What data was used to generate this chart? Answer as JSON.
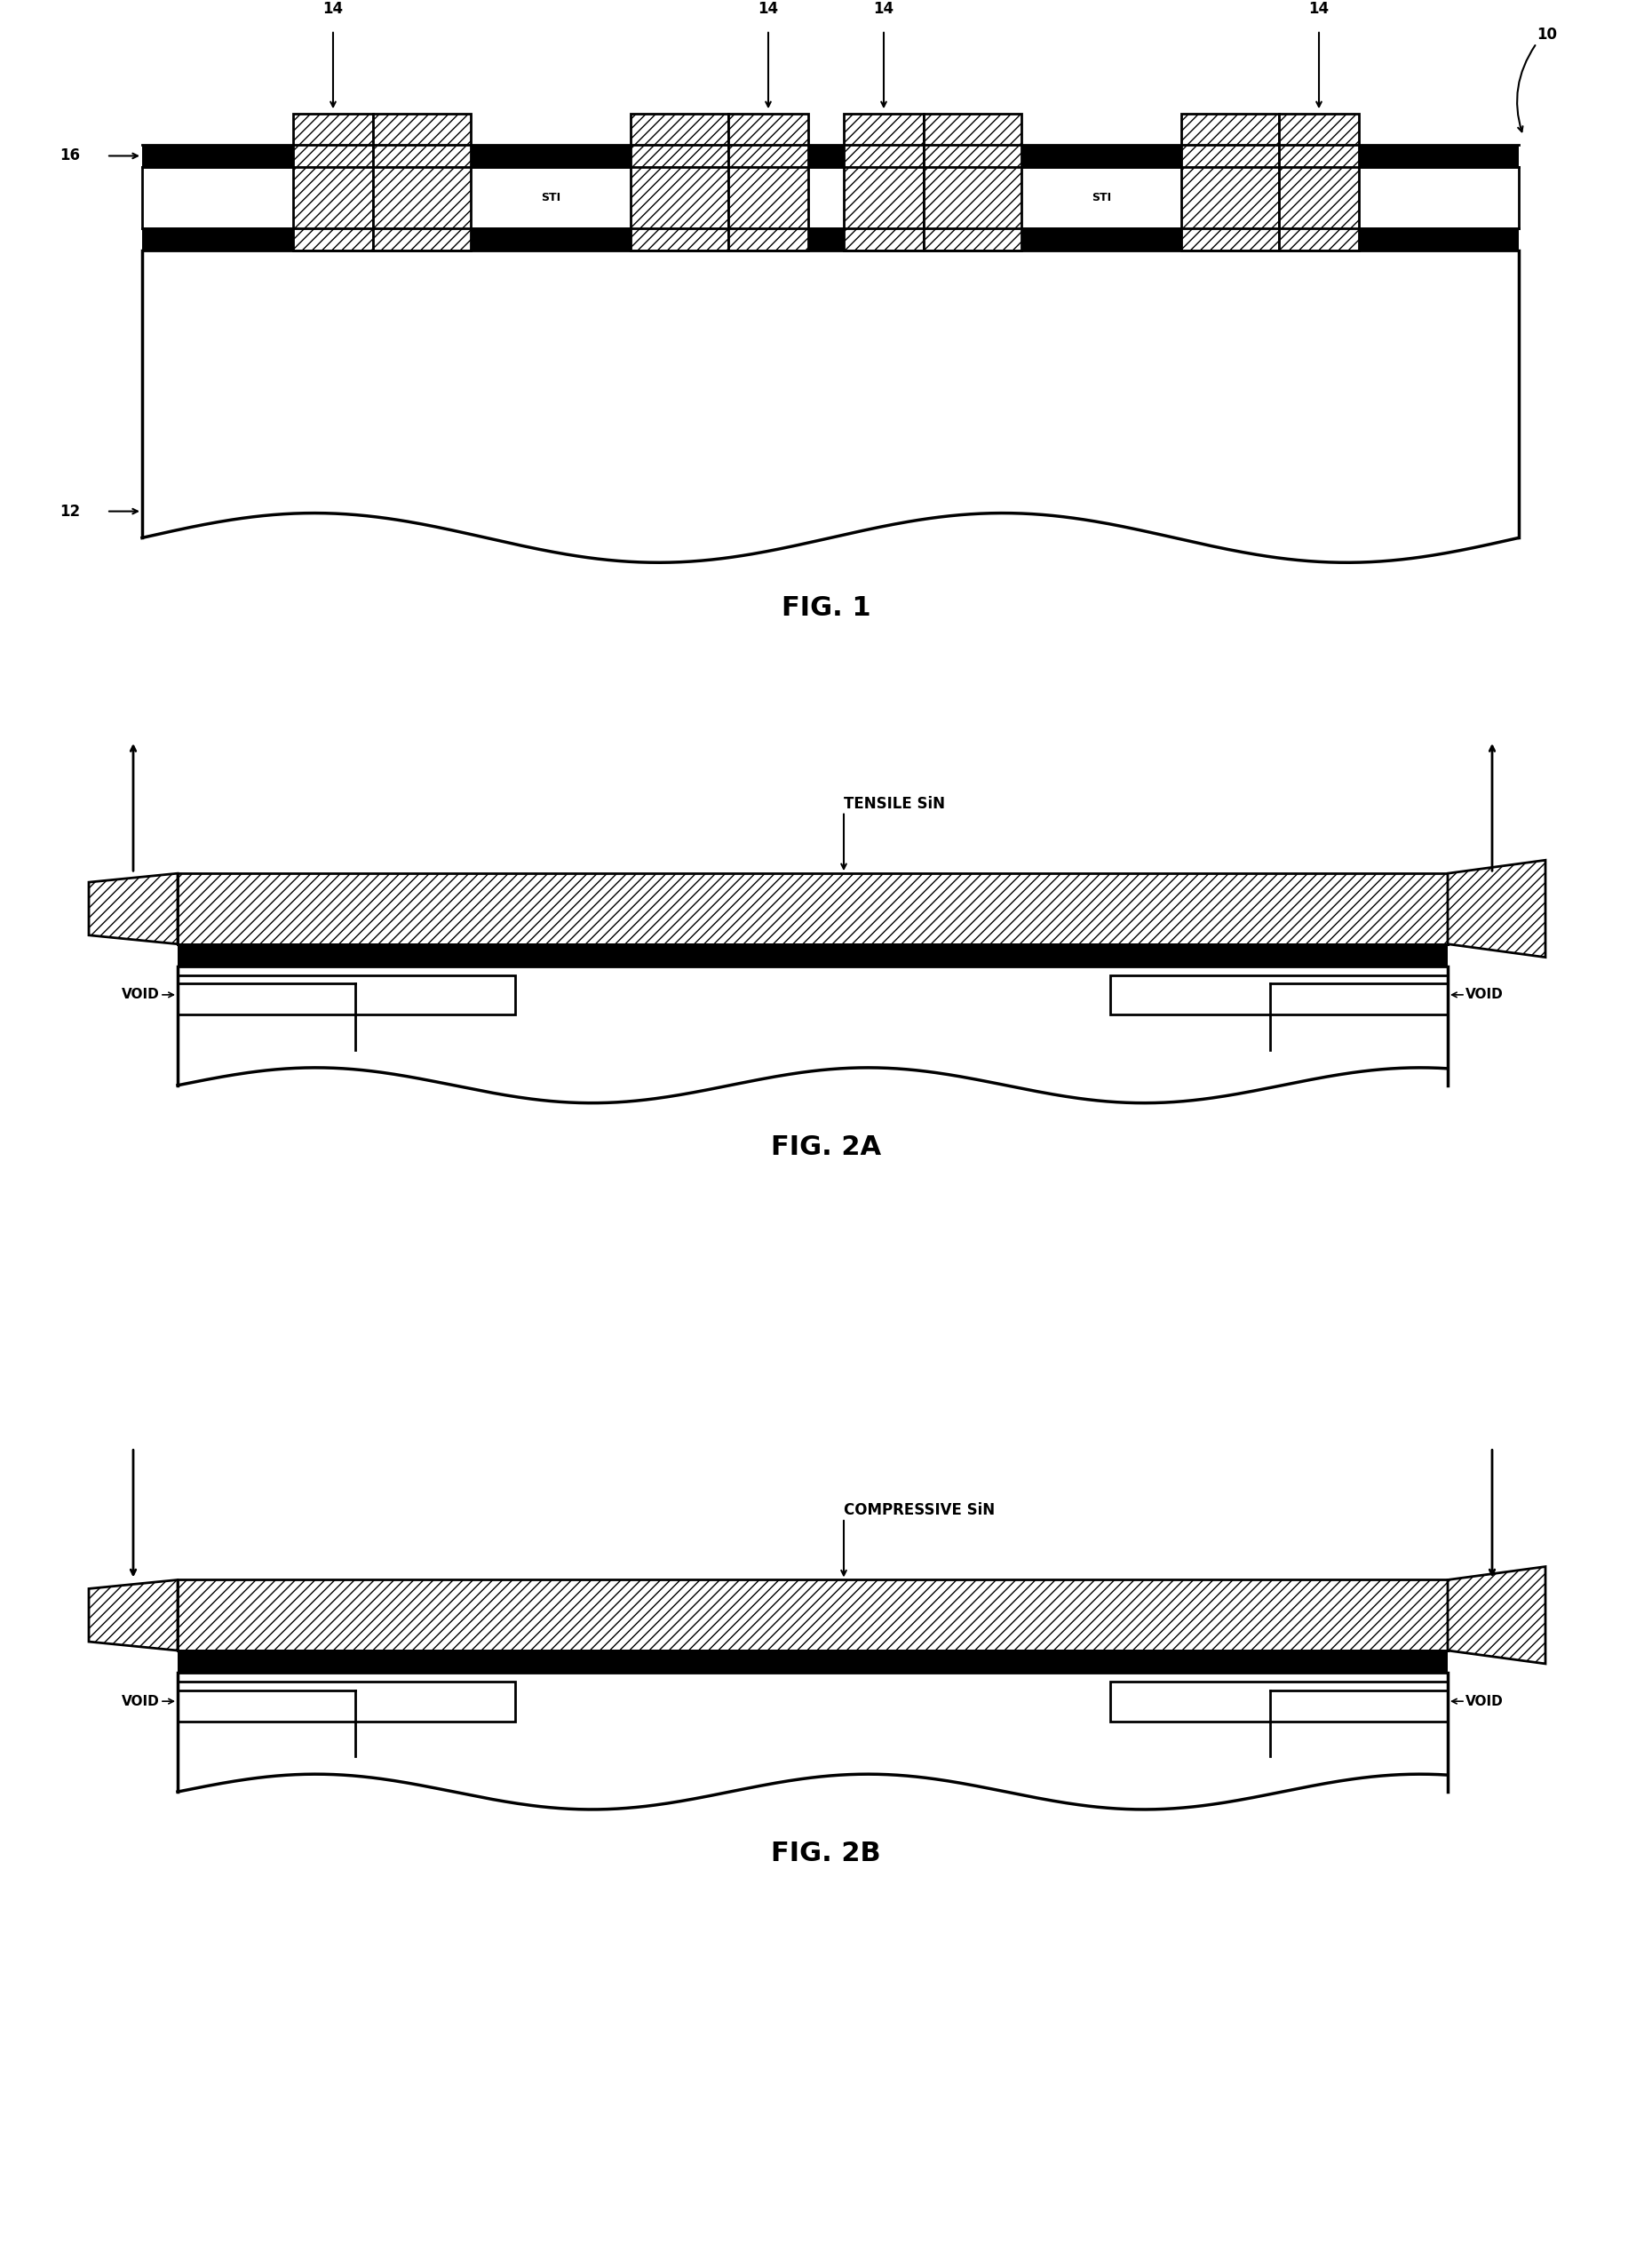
{
  "fig_width": 18.6,
  "fig_height": 25.34,
  "bg_color": "#ffffff",
  "fig1": {
    "label": "FIG. 1",
    "ref_10": "10",
    "ref_12": "12",
    "ref_16": "16",
    "ref_14": "14",
    "sti_label": "STI"
  },
  "fig2a": {
    "label": "FIG. 2A",
    "sin_label": "TENSILE SiN",
    "void_label": "VOID"
  },
  "fig2b": {
    "label": "FIG. 2B",
    "sin_label": "COMPRESSIVE SiN",
    "void_label": "VOID"
  }
}
